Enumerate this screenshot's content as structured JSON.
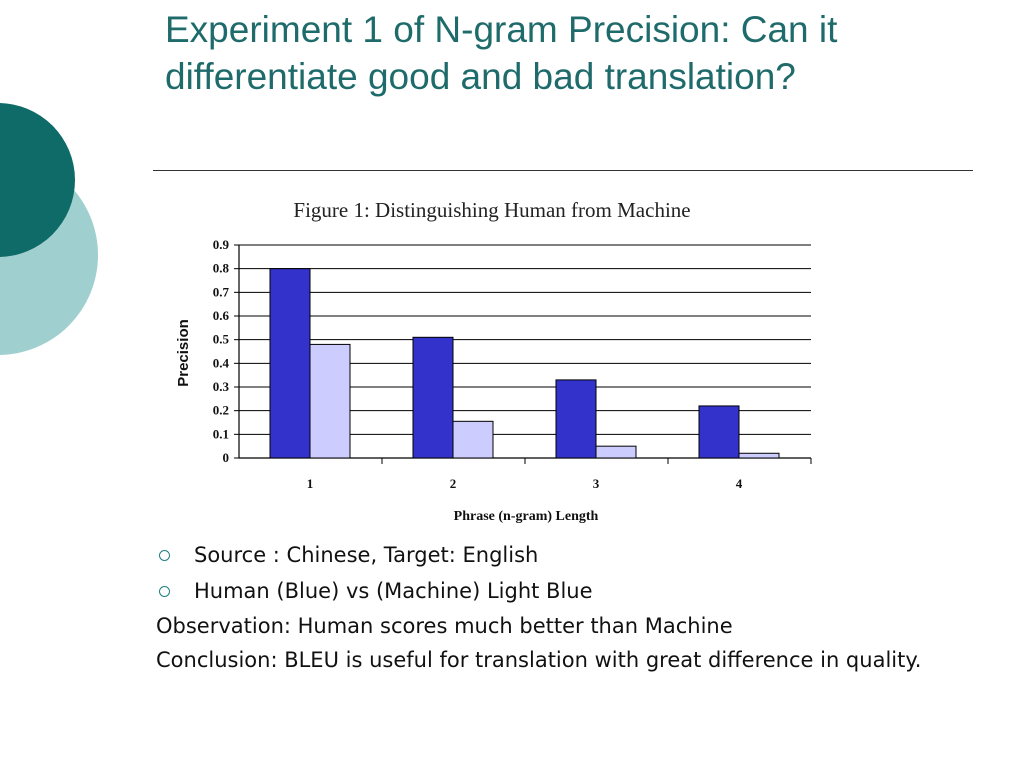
{
  "slide": {
    "title": "Experiment 1 of N-gram Precision: Can it differentiate good and bad translation?",
    "bullets": [
      {
        "style": "circle",
        "text": "Source : Chinese, Target: English"
      },
      {
        "style": "circle",
        "text": "Human (Blue) vs (Machine) Light Blue"
      },
      {
        "style": "plain",
        "text": "Observation: Human scores much better than Machine"
      },
      {
        "style": "plain",
        "text": "Conclusion: BLEU is useful for translation with great difference in quality."
      }
    ]
  },
  "colors": {
    "title": "#1f6b6b",
    "deco_dark": "#0e6b68",
    "deco_light": "#9fcfcf",
    "human_bar": "#3333cc",
    "machine_bar": "#ccccff"
  },
  "chart_data": {
    "type": "bar",
    "title": "Figure 1: Distinguishing Human from Machine",
    "xlabel": "Phrase (n-gram) Length",
    "ylabel": "Precision",
    "categories": [
      "1",
      "2",
      "3",
      "4"
    ],
    "series": [
      {
        "color": "#3333cc",
        "values": [
          0.8,
          0.51,
          0.33,
          0.22
        ]
      },
      {
        "color": "#ccccff",
        "values": [
          0.48,
          0.155,
          0.05,
          0.02
        ]
      }
    ],
    "ylim": [
      0,
      0.9
    ],
    "yticks": [
      "0",
      "0.1",
      "0.2",
      "0.3",
      "0.4",
      "0.5",
      "0.6",
      "0.7",
      "0.8",
      "0.9"
    ],
    "grid": true,
    "legend": "none"
  }
}
